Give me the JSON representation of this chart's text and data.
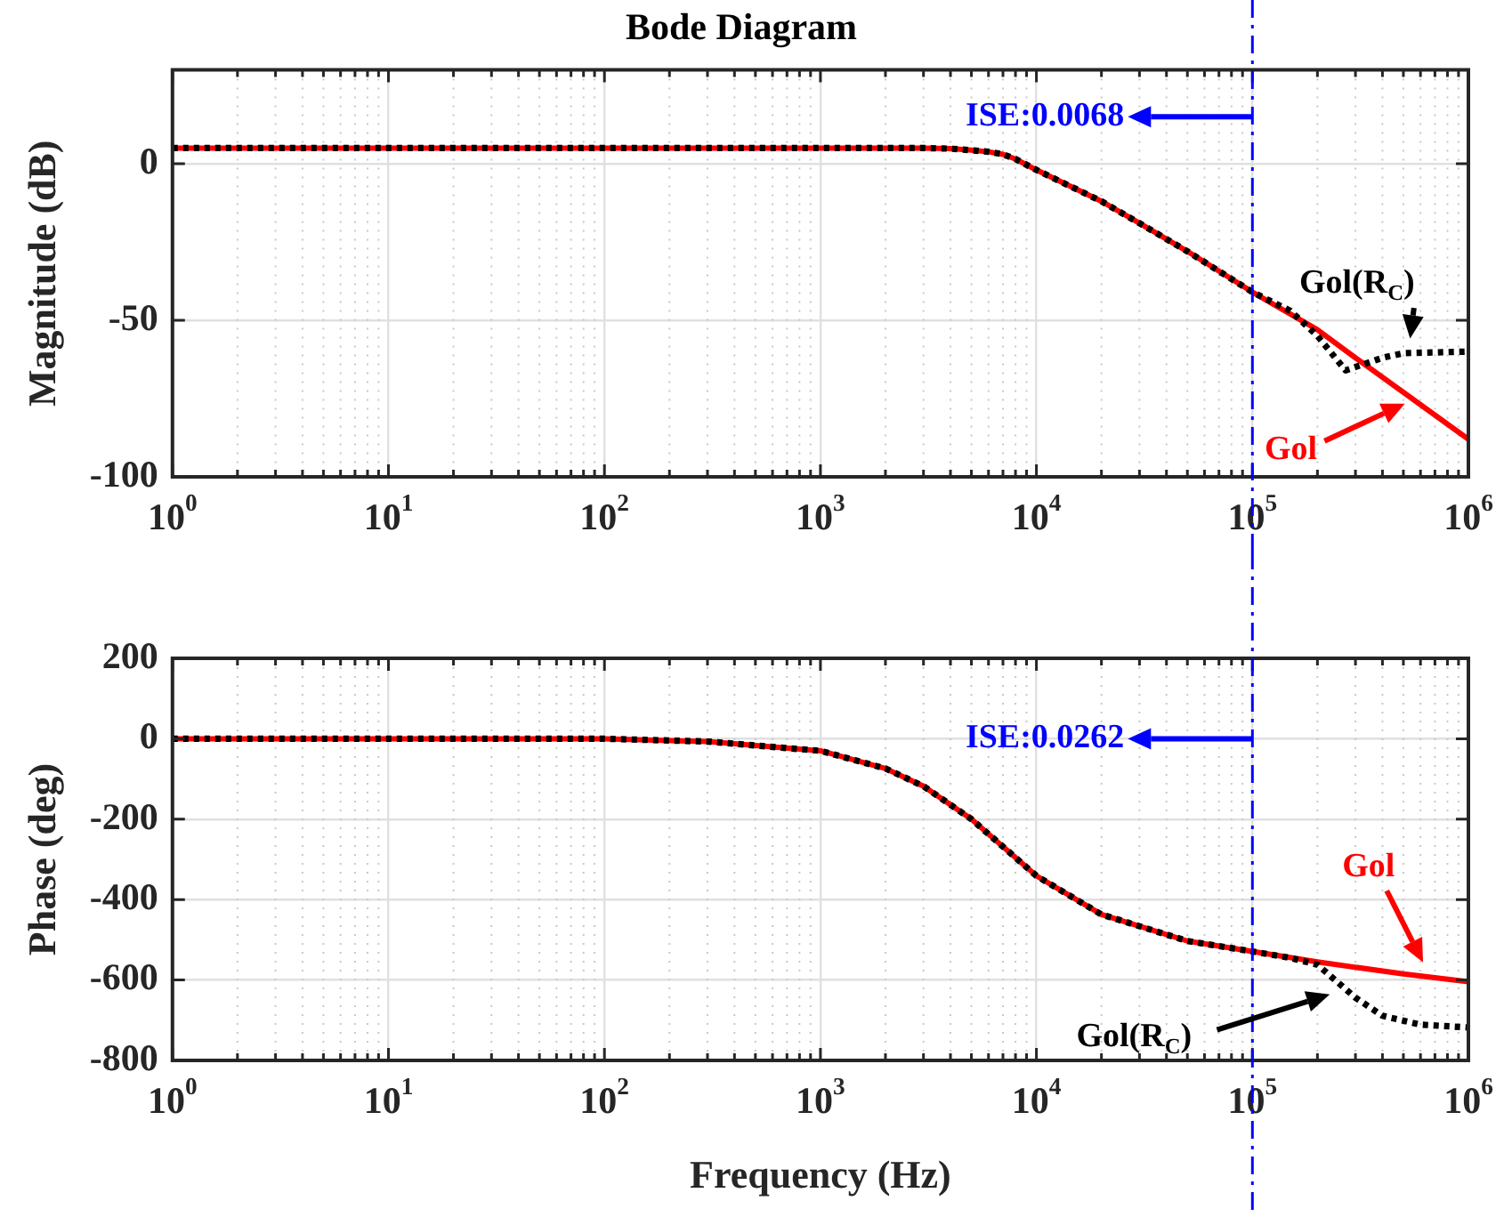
{
  "chart_data": [
    {
      "type": "line",
      "title": "Bode Diagram",
      "ylabel": "Magnitude (dB)",
      "log": "x",
      "grid": true,
      "marker": "none",
      "xlim": [
        1,
        1000000
      ],
      "ylim": [
        -100,
        30
      ],
      "yticks": [
        -100,
        -50,
        0
      ],
      "xticks": [
        {
          "value": 1,
          "label": "10$^{0}$"
        },
        {
          "value": 2,
          "label": null
        },
        {
          "value": 3,
          "label": null
        },
        {
          "value": 4,
          "label": null
        },
        {
          "value": 5,
          "label": null
        },
        {
          "value": 6,
          "label": null
        },
        {
          "value": 7,
          "label": null
        },
        {
          "value": 8,
          "label": null
        },
        {
          "value": 9,
          "label": null
        },
        {
          "value": 10,
          "label": "10$^{1}$"
        },
        {
          "value": 20,
          "label": null
        },
        {
          "value": 30,
          "label": null
        },
        {
          "value": 40,
          "label": null
        },
        {
          "value": 50,
          "label": null
        },
        {
          "value": 60,
          "label": null
        },
        {
          "value": 70,
          "label": null
        },
        {
          "value": 80,
          "label": null
        },
        {
          "value": 90,
          "label": null
        },
        {
          "value": 100,
          "label": "10$^{2}$"
        },
        {
          "value": 200,
          "label": null
        },
        {
          "value": 300,
          "label": null
        },
        {
          "value": 400,
          "label": null
        },
        {
          "value": 500,
          "label": null
        },
        {
          "value": 600,
          "label": null
        },
        {
          "value": 700,
          "label": null
        },
        {
          "value": 800,
          "label": null
        },
        {
          "value": 900,
          "label": null
        },
        {
          "value": 1000,
          "label": "10$^{3}$"
        },
        {
          "value": 2000,
          "label": null
        },
        {
          "value": 3000,
          "label": null
        },
        {
          "value": 4000,
          "label": null
        },
        {
          "value": 5000,
          "label": null
        },
        {
          "value": 6000,
          "label": null
        },
        {
          "value": 7000,
          "label": null
        },
        {
          "value": 8000,
          "label": null
        },
        {
          "value": 9000,
          "label": null
        },
        {
          "value": 10000,
          "label": "10$^{4}$"
        },
        {
          "value": 20000,
          "label": null
        },
        {
          "value": 30000,
          "label": null
        },
        {
          "value": 40000,
          "label": null
        },
        {
          "value": 50000,
          "label": null
        },
        {
          "value": 60000,
          "label": null
        },
        {
          "value": 70000,
          "label": null
        },
        {
          "value": 80000,
          "label": null
        },
        {
          "value": 90000,
          "label": null
        },
        {
          "value": 100000,
          "label": "10$^{5}$"
        },
        {
          "value": 200000,
          "label": null
        },
        {
          "value": 300000,
          "label": null
        },
        {
          "value": 400000,
          "label": null
        },
        {
          "value": 500000,
          "label": null
        },
        {
          "value": 600000,
          "label": null
        },
        {
          "value": 700000,
          "label": null
        },
        {
          "value": 800000,
          "label": null
        },
        {
          "value": 900000,
          "label": null
        },
        {
          "value": 1000000,
          "label": "10$^{6}$"
        }
      ],
      "series": [
        {
          "name": "Gol",
          "color": "#ff0000",
          "line_style": "solid",
          "x": [
            1,
            10,
            100,
            1000,
            3000,
            4000,
            5000,
            6000,
            7000,
            8000,
            10000,
            20000,
            30000,
            50000,
            100000,
            200000,
            300000,
            500000,
            1000000
          ],
          "values": [
            5,
            5,
            5,
            5,
            5,
            4.8,
            4.3,
            3.8,
            3,
            1.5,
            -2,
            -12,
            -19,
            -28,
            -41,
            -53,
            -62,
            -73,
            -88
          ]
        },
        {
          "name": "Gol(R$_{C}$)",
          "color": "#000000",
          "line_style": "dotted",
          "x": [
            1,
            10,
            100,
            1000,
            3000,
            4000,
            5000,
            6000,
            7000,
            8000,
            10000,
            20000,
            30000,
            50000,
            100000,
            150000,
            200000,
            270000,
            400000,
            500000,
            1000000
          ],
          "values": [
            5,
            5,
            5,
            5,
            5,
            4.8,
            4.3,
            3.8,
            3,
            1.5,
            -2,
            -12,
            -19,
            -28,
            -41,
            -47,
            -55,
            -66,
            -62,
            -60.5,
            -60
          ]
        }
      ],
      "ref_lines": [
        {
          "axis": "x",
          "value": 100000,
          "color": "#0000ff",
          "line_style": "dashdot"
        }
      ],
      "annotations": [
        {
          "text": "ISE:0.0068",
          "x": 100000,
          "y": 15
        }
      ]
    },
    {
      "type": "line",
      "xlabel": "Frequency (Hz)",
      "ylabel": "Phase (deg)",
      "log": "x",
      "grid": true,
      "marker": "none",
      "xlim": [
        1,
        1000000
      ],
      "ylim": [
        -800,
        200
      ],
      "yticks": [
        -800,
        -600,
        -400,
        -200,
        0,
        200
      ],
      "xticks": [
        {
          "value": 1,
          "label": "10$^{0}$"
        },
        {
          "value": 2,
          "label": null
        },
        {
          "value": 3,
          "label": null
        },
        {
          "value": 4,
          "label": null
        },
        {
          "value": 5,
          "label": null
        },
        {
          "value": 6,
          "label": null
        },
        {
          "value": 7,
          "label": null
        },
        {
          "value": 8,
          "label": null
        },
        {
          "value": 9,
          "label": null
        },
        {
          "value": 10,
          "label": "10$^{1}$"
        },
        {
          "value": 20,
          "label": null
        },
        {
          "value": 30,
          "label": null
        },
        {
          "value": 40,
          "label": null
        },
        {
          "value": 50,
          "label": null
        },
        {
          "value": 60,
          "label": null
        },
        {
          "value": 70,
          "label": null
        },
        {
          "value": 80,
          "label": null
        },
        {
          "value": 90,
          "label": null
        },
        {
          "value": 100,
          "label": "10$^{2}$"
        },
        {
          "value": 200,
          "label": null
        },
        {
          "value": 300,
          "label": null
        },
        {
          "value": 400,
          "label": null
        },
        {
          "value": 500,
          "label": null
        },
        {
          "value": 600,
          "label": null
        },
        {
          "value": 700,
          "label": null
        },
        {
          "value": 800,
          "label": null
        },
        {
          "value": 900,
          "label": null
        },
        {
          "value": 1000,
          "label": "10$^{3}$"
        },
        {
          "value": 2000,
          "label": null
        },
        {
          "value": 3000,
          "label": null
        },
        {
          "value": 4000,
          "label": null
        },
        {
          "value": 5000,
          "label": null
        },
        {
          "value": 6000,
          "label": null
        },
        {
          "value": 7000,
          "label": null
        },
        {
          "value": 8000,
          "label": null
        },
        {
          "value": 9000,
          "label": null
        },
        {
          "value": 10000,
          "label": "10$^{4}$"
        },
        {
          "value": 20000,
          "label": null
        },
        {
          "value": 30000,
          "label": null
        },
        {
          "value": 40000,
          "label": null
        },
        {
          "value": 50000,
          "label": null
        },
        {
          "value": 60000,
          "label": null
        },
        {
          "value": 70000,
          "label": null
        },
        {
          "value": 80000,
          "label": null
        },
        {
          "value": 90000,
          "label": null
        },
        {
          "value": 100000,
          "label": "10$^{5}$"
        },
        {
          "value": 200000,
          "label": null
        },
        {
          "value": 300000,
          "label": null
        },
        {
          "value": 400000,
          "label": null
        },
        {
          "value": 500000,
          "label": null
        },
        {
          "value": 600000,
          "label": null
        },
        {
          "value": 700000,
          "label": null
        },
        {
          "value": 800000,
          "label": null
        },
        {
          "value": 900000,
          "label": null
        },
        {
          "value": 1000000,
          "label": "10$^{6}$"
        }
      ],
      "series": [
        {
          "name": "Gol",
          "color": "#ff0000",
          "line_style": "solid",
          "x": [
            1,
            10,
            100,
            300,
            1000,
            2000,
            3000,
            5000,
            10000,
            20000,
            50000,
            100000,
            200000,
            500000,
            1000000
          ],
          "values": [
            0,
            0,
            0,
            -7,
            -30,
            -74,
            -118,
            -200,
            -341,
            -437,
            -503,
            -529,
            -555,
            -585,
            -604
          ]
        },
        {
          "name": "Gol(R$_{C}$)",
          "color": "#000000",
          "line_style": "dotted",
          "x": [
            1,
            10,
            100,
            300,
            1000,
            2000,
            3000,
            5000,
            10000,
            20000,
            50000,
            100000,
            150000,
            200000,
            300000,
            400000,
            600000,
            1000000
          ],
          "values": [
            0,
            0,
            0,
            -7,
            -30,
            -74,
            -118,
            -200,
            -341,
            -437,
            -503,
            -529,
            -545,
            -562,
            -644,
            -689,
            -711,
            -718
          ]
        }
      ],
      "ref_lines": [
        {
          "axis": "x",
          "value": 100000,
          "color": "#0000ff",
          "line_style": "dashdot"
        }
      ],
      "annotations": [
        {
          "text": "ISE:0.0262",
          "x": 100000,
          "y": 0
        }
      ]
    }
  ]
}
